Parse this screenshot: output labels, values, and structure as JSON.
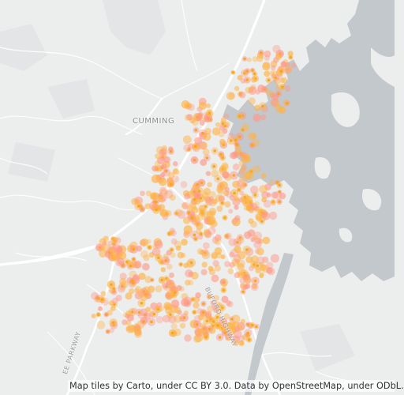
{
  "map": {
    "place_labels": {
      "cumming": "CUMMING"
    },
    "road_labels": {
      "buford_highway": "BUFORD HIGHWAY",
      "parkway": "EE PARKWAY"
    },
    "attribution": "Map tiles by Carto, under CC BY 3.0. Data by OpenStreetMap, under ODbL.",
    "colors": {
      "land": "#eceded",
      "water": "#c3c8cd",
      "road": "#ffffff",
      "point_fill": "#ffb347",
      "point_halo": "#ff9a8a",
      "point_center": "#f2a51a"
    }
  }
}
